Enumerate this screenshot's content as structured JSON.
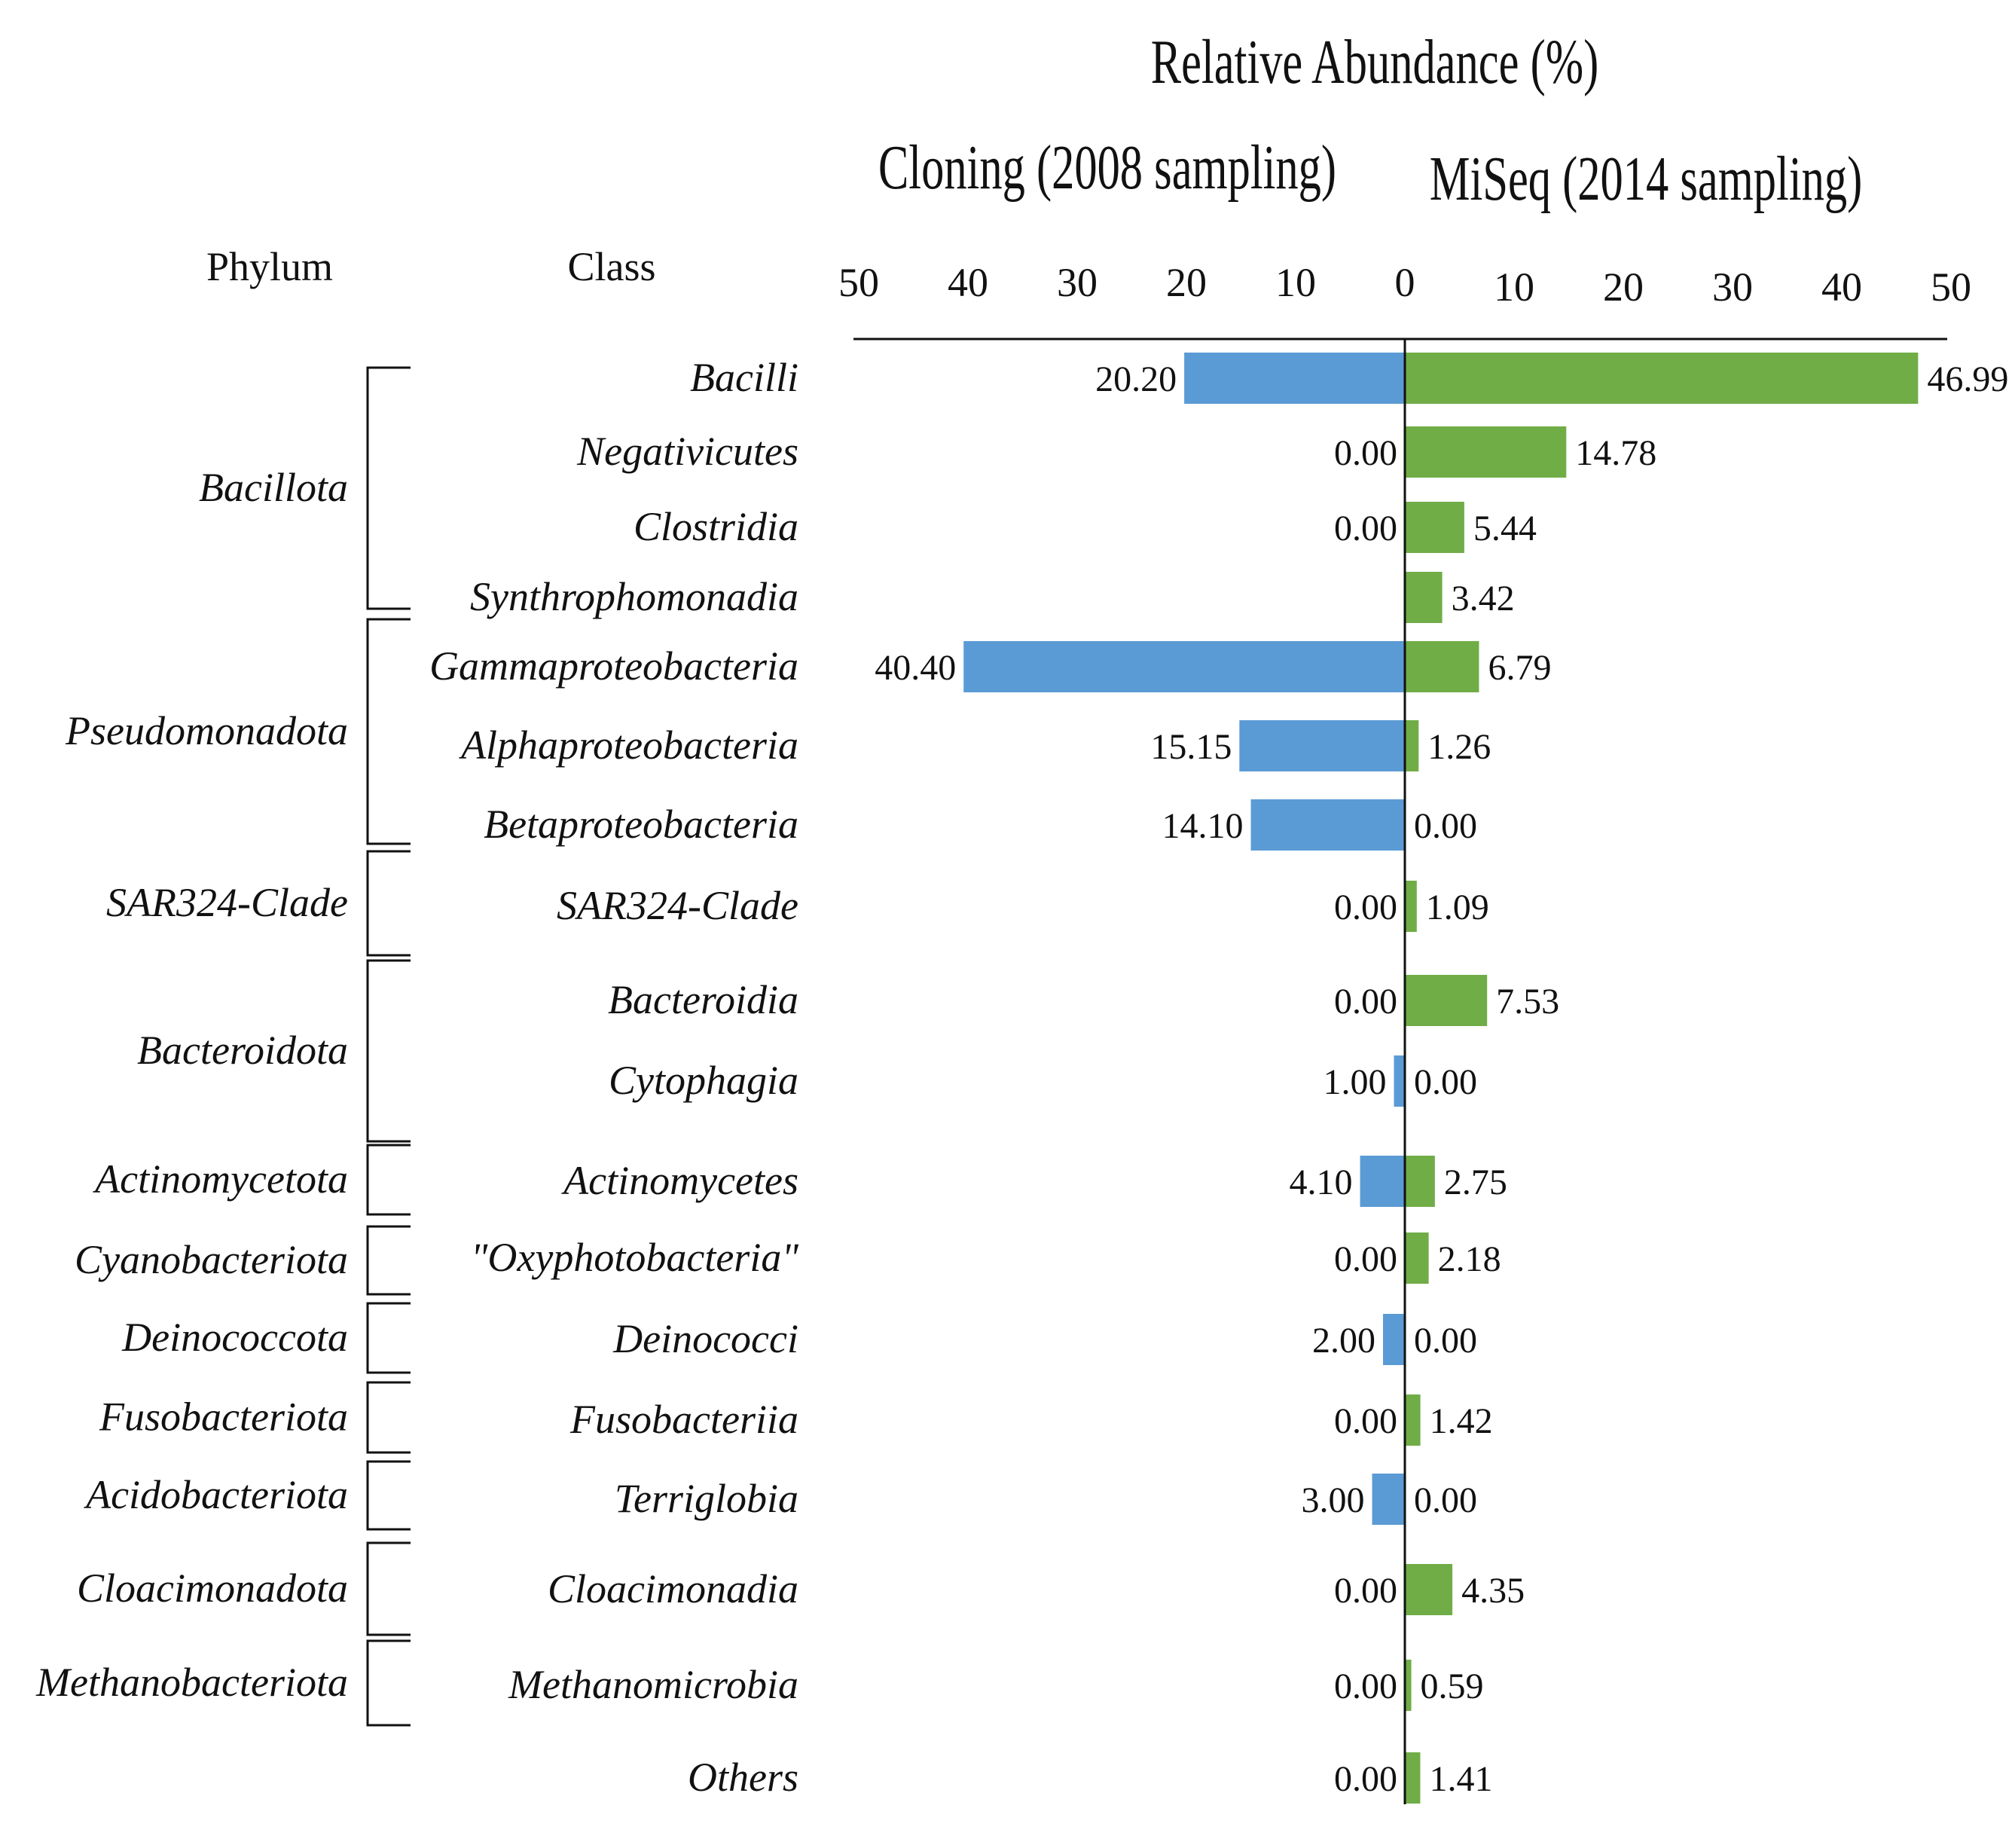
{
  "chart_data": {
    "type": "bar",
    "title": "Relative Abundance (%)",
    "left_panel": "Cloning (2008 sampling)",
    "right_panel": "MiSeq (2014 sampling)",
    "left_ticks": [
      "50",
      "40",
      "30",
      "20",
      "10",
      "0"
    ],
    "right_ticks": [
      "10",
      "20",
      "30",
      "40",
      "50"
    ],
    "xlim": [
      0,
      50
    ],
    "phylum_header": "Phylum",
    "class_header": "Class",
    "series": [
      {
        "name": "Cloning (2008 sampling)",
        "color": "#5b9bd5"
      },
      {
        "name": "MiSeq (2014 sampling)",
        "color": "#70ad47"
      }
    ],
    "rows": [
      {
        "cls": "Bacilli",
        "left": 20.2,
        "left_label": "20.20",
        "right": 46.99,
        "right_label": "46.99"
      },
      {
        "cls": "Negativicutes",
        "left": 0,
        "left_label": "0.00",
        "right": 14.78,
        "right_label": "14.78"
      },
      {
        "cls": "Clostridia",
        "left": 0,
        "left_label": "0.00",
        "right": 5.44,
        "right_label": "5.44"
      },
      {
        "cls": "Synthrophomonadia",
        "left": 0,
        "left_label": "",
        "right": 3.42,
        "right_label": "3.42"
      },
      {
        "cls": "Gammaproteobacteria",
        "left": 40.4,
        "left_label": "40.40",
        "right": 6.79,
        "right_label": "6.79"
      },
      {
        "cls": "Alphaproteobacteria",
        "left": 15.15,
        "left_label": "15.15",
        "right": 1.26,
        "right_label": "1.26"
      },
      {
        "cls": "Betaproteobacteria",
        "left": 14.1,
        "left_label": "14.10",
        "right": 0,
        "right_label": "0.00"
      },
      {
        "cls": "SAR324-Clade",
        "left": 0,
        "left_label": "0.00",
        "right": 1.09,
        "right_label": "1.09"
      },
      {
        "cls": "Bacteroidia",
        "left": 0,
        "left_label": "0.00",
        "right": 7.53,
        "right_label": "7.53"
      },
      {
        "cls": "Cytophagia",
        "left": 1.0,
        "left_label": "1.00",
        "right": 0,
        "right_label": "0.00"
      },
      {
        "cls": "Actinomycetes",
        "left": 4.1,
        "left_label": "4.10",
        "right": 2.75,
        "right_label": "2.75"
      },
      {
        "cls": "\"Oxyphotobacteria\"",
        "left": 0,
        "left_label": "0.00",
        "right": 2.18,
        "right_label": "2.18"
      },
      {
        "cls": "Deinococci",
        "left": 2.0,
        "left_label": "2.00",
        "right": 0,
        "right_label": "0.00"
      },
      {
        "cls": "Fusobacteriia",
        "left": 0,
        "left_label": "0.00",
        "right": 1.42,
        "right_label": "1.42"
      },
      {
        "cls": "Terriglobia",
        "left": 3.0,
        "left_label": "3.00",
        "right": 0,
        "right_label": "0.00"
      },
      {
        "cls": "Cloacimonadia",
        "left": 0,
        "left_label": "0.00",
        "right": 4.35,
        "right_label": "4.35"
      },
      {
        "cls": "Methanomicrobia",
        "left": 0,
        "left_label": "0.00",
        "right": 0.59,
        "right_label": "0.59"
      },
      {
        "cls": "Others",
        "left": 0,
        "left_label": "0.00",
        "right": 1.41,
        "right_label": "1.41"
      }
    ],
    "phyla": [
      {
        "name": "Bacillota",
        "first": 0,
        "last": 3
      },
      {
        "name": "Pseudomonadota",
        "first": 4,
        "last": 6
      },
      {
        "name": "SAR324-Clade",
        "first": 7,
        "last": 7
      },
      {
        "name": "Bacteroidota",
        "first": 8,
        "last": 9
      },
      {
        "name": "Actinomycetota",
        "first": 10,
        "last": 10
      },
      {
        "name": "Cyanobacteriota",
        "first": 11,
        "last": 11
      },
      {
        "name": "Deinococcota",
        "first": 12,
        "last": 12
      },
      {
        "name": "Fusobacteriota",
        "first": 13,
        "last": 13
      },
      {
        "name": "Acidobacteriota",
        "first": 14,
        "last": 14
      },
      {
        "name": "Cloacimonadota",
        "first": 15,
        "last": 15
      },
      {
        "name": "Methanobacteriota",
        "first": 16,
        "last": 16
      }
    ]
  }
}
